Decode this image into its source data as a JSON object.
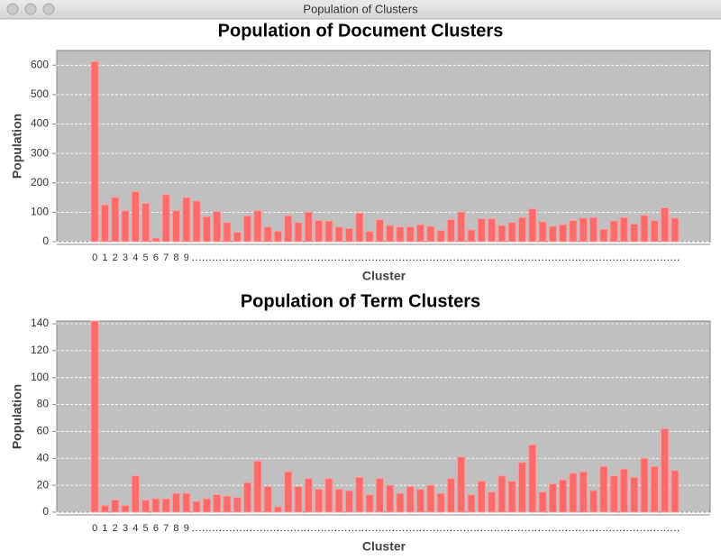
{
  "window_title": "Population of Clusters",
  "chart_data": [
    {
      "type": "bar",
      "title": "Population of Document Clusters",
      "x_label": "Cluster",
      "y_label": "Population",
      "categories": [
        "0",
        "1",
        "2",
        "3",
        "4",
        "5",
        "6",
        "7",
        "8",
        "9",
        "...",
        "...",
        "...",
        "...",
        "...",
        "...",
        "...",
        "...",
        "...",
        "...",
        "...",
        "...",
        "...",
        "...",
        "...",
        "...",
        "...",
        "...",
        "...",
        "...",
        "...",
        "...",
        "...",
        "...",
        "...",
        "...",
        "...",
        "...",
        "...",
        "...",
        "...",
        "...",
        "...",
        "...",
        "...",
        "...",
        "...",
        "...",
        "...",
        "...",
        "...",
        "...",
        "...",
        "...",
        "...",
        "...",
        "...",
        "..."
      ],
      "values": [
        612,
        125,
        150,
        105,
        170,
        130,
        12,
        160,
        105,
        150,
        138,
        85,
        102,
        65,
        32,
        88,
        105,
        50,
        35,
        88,
        65,
        100,
        72,
        70,
        50,
        45,
        97,
        35,
        75,
        55,
        50,
        50,
        58,
        52,
        38,
        75,
        100,
        40,
        78,
        78,
        55,
        65,
        82,
        112,
        68,
        52,
        58,
        72,
        80,
        82,
        42,
        70,
        82,
        60,
        90,
        72,
        115,
        80
      ],
      "color": "#ff6b6b",
      "ylim": [
        0,
        650
      ],
      "yticks": [
        0,
        100,
        200,
        300,
        400,
        500,
        600
      ],
      "grid": true
    },
    {
      "type": "bar",
      "title": "Population of Term Clusters",
      "x_label": "Cluster",
      "y_label": "Population",
      "categories": [
        "0",
        "1",
        "2",
        "3",
        "4",
        "5",
        "6",
        "7",
        "8",
        "9",
        "...",
        "...",
        "...",
        "...",
        "...",
        "...",
        "...",
        "...",
        "...",
        "...",
        "...",
        "...",
        "...",
        "...",
        "...",
        "...",
        "...",
        "...",
        "...",
        "...",
        "...",
        "...",
        "...",
        "...",
        "...",
        "...",
        "...",
        "...",
        "...",
        "...",
        "...",
        "...",
        "...",
        "...",
        "...",
        "...",
        "...",
        "...",
        "...",
        "...",
        "...",
        "...",
        "...",
        "...",
        "...",
        "...",
        "...",
        "..."
      ],
      "values": [
        142,
        5,
        9,
        5,
        27,
        9,
        10,
        10,
        14,
        14,
        8,
        10,
        13,
        12,
        11,
        22,
        38,
        19,
        4,
        30,
        19,
        25,
        17,
        25,
        17,
        16,
        26,
        13,
        25,
        20,
        14,
        19,
        17,
        20,
        14,
        25,
        41,
        13,
        23,
        15,
        27,
        23,
        37,
        50,
        15,
        21,
        24,
        29,
        30,
        16,
        34,
        27,
        32,
        26,
        40,
        34,
        62,
        31
      ],
      "color": "#ff6b6b",
      "ylim": [
        0,
        142
      ],
      "yticks": [
        0,
        20,
        40,
        60,
        80,
        100,
        120,
        140
      ],
      "grid": true
    }
  ]
}
